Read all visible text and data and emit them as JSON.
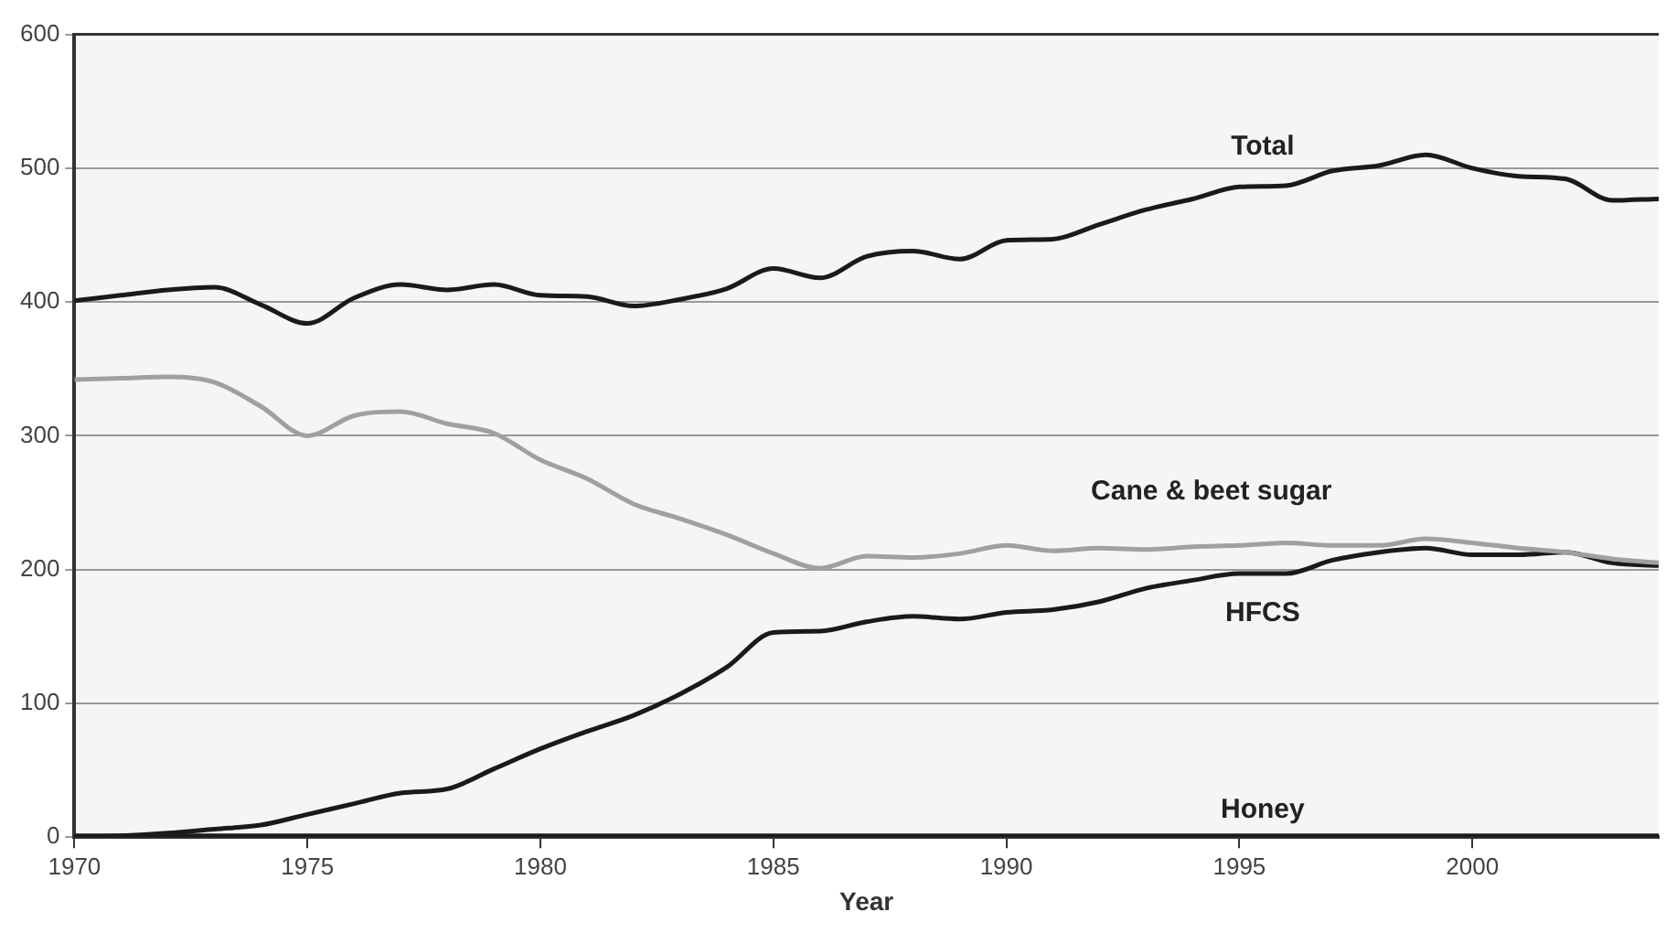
{
  "chart_data": {
    "type": "line",
    "xlabel": "Year",
    "x": [
      1970,
      1971,
      1972,
      1973,
      1974,
      1975,
      1976,
      1977,
      1978,
      1979,
      1980,
      1981,
      1982,
      1983,
      1984,
      1985,
      1986,
      1987,
      1988,
      1989,
      1990,
      1991,
      1992,
      1993,
      1994,
      1995,
      1996,
      1997,
      1998,
      1999,
      2000,
      2001,
      2002,
      2003,
      2004
    ],
    "series": [
      {
        "name": "Total",
        "color": "#1a1a1a",
        "values": [
          401,
          405,
          409,
          411,
          398,
          384,
          403,
          413,
          409,
          413,
          405,
          404,
          397,
          402,
          410,
          425,
          418,
          434,
          438,
          432,
          446,
          447,
          458,
          469,
          477,
          486,
          487,
          498,
          502,
          510,
          500,
          494,
          492,
          476,
          477
        ]
      },
      {
        "name": "Cane & beet sugar",
        "color": "#a0a0a0",
        "values": [
          342,
          343,
          344,
          340,
          322,
          300,
          315,
          318,
          309,
          302,
          282,
          268,
          249,
          238,
          226,
          212,
          201,
          210,
          209,
          212,
          218,
          214,
          216,
          215,
          217,
          218,
          220,
          218,
          218,
          223,
          220,
          216,
          213,
          208,
          205
        ]
      },
      {
        "name": "HFCS",
        "color": "#1a1a1a",
        "values": [
          0,
          1,
          3,
          6,
          9,
          17,
          25,
          33,
          36,
          51,
          66,
          79,
          91,
          107,
          127,
          153,
          154,
          161,
          165,
          163,
          168,
          170,
          176,
          186,
          192,
          197,
          197,
          207,
          213,
          216,
          211,
          211,
          213,
          205,
          203
        ]
      },
      {
        "name": "Honey",
        "color": "#1a1a1a",
        "values": [
          1,
          1,
          1,
          1,
          1,
          1,
          1,
          1,
          1,
          1,
          1,
          1,
          1,
          1,
          1,
          1,
          1,
          1,
          1,
          1,
          1,
          1,
          1,
          1,
          1,
          1,
          1,
          1,
          1,
          1,
          1,
          1,
          1,
          1,
          1
        ]
      }
    ],
    "xlim": [
      1970,
      2004
    ],
    "xticks": [
      1970,
      1975,
      1980,
      1985,
      1990,
      1995,
      2000
    ],
    "ylim": [
      0,
      600
    ],
    "yticks": [
      0,
      100,
      200,
      300,
      400,
      500,
      600
    ],
    "grid": "y",
    "legend": false,
    "marker": "none",
    "line_style": "solid"
  }
}
